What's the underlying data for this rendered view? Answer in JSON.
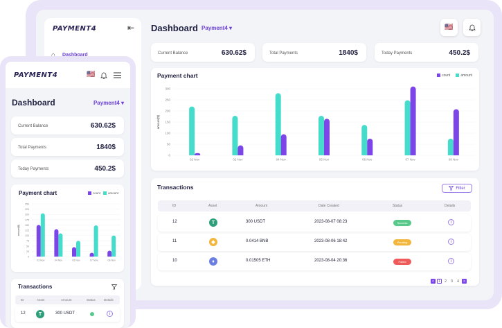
{
  "brand": "PAYMENT4",
  "desktop": {
    "sidebar": {
      "items": [
        {
          "label": "Dashboard",
          "icon": "home-icon"
        }
      ]
    },
    "title": "Dashboard",
    "selector": "Payment4",
    "stats": [
      {
        "label": "Current Balance",
        "value": "630.62$"
      },
      {
        "label": "Total Payments",
        "value": "1840$"
      },
      {
        "label": "Today Payments",
        "value": "450.2$"
      }
    ],
    "chart_title": "Payment chart",
    "transactions": {
      "title": "Transactions",
      "filter_label": "Filter",
      "columns": [
        "ID",
        "Asset",
        "Amount",
        "Date Created",
        "Status",
        "Details"
      ],
      "rows": [
        {
          "id": "12",
          "asset_icon": "tether-icon",
          "amount": "300 USDT",
          "date": "2023-08-07 08:23",
          "status": "Success",
          "status_color": "#58c98a"
        },
        {
          "id": "11",
          "asset_icon": "bnb-icon",
          "amount": "0.0414 BNB",
          "date": "2023-08-06 18:42",
          "status": "Pending",
          "status_color": "#f2b63c"
        },
        {
          "id": "10",
          "asset_icon": "eth-icon",
          "amount": "0.01505 ETH",
          "date": "2023-08-04 20:36",
          "status": "Failed",
          "status_color": "#ef5a5a"
        }
      ],
      "pages": [
        "<",
        "1",
        "2",
        "3",
        "4",
        ">"
      ]
    }
  },
  "mobile": {
    "title": "Dashboard",
    "selector": "Payment4",
    "stats": [
      {
        "label": "Current Balance",
        "value": "630.62$"
      },
      {
        "label": "Total Payments",
        "value": "1840$"
      },
      {
        "label": "Today Payments",
        "value": "450.2$"
      }
    ],
    "chart_title": "Payment chart",
    "transactions": {
      "title": "Transactions",
      "columns": [
        "ID",
        "Asset",
        "Amount",
        "Status",
        "Details"
      ],
      "row": {
        "id": "12",
        "amount": "300 USDT",
        "status_color": "#58c98a"
      }
    }
  },
  "colors": {
    "accent": "#6b3fd8",
    "count": "#7b45e8",
    "amount": "#45dccc"
  },
  "chart_data": [
    {
      "type": "bar",
      "title": "Payment chart",
      "ylabel": "amount($)",
      "legend": "top-right",
      "categories": [
        "02 Nov",
        "02 Nov",
        "04 Nov",
        "05 Nov",
        "06 Nov",
        "07 Nov",
        "08 Nov"
      ],
      "series": [
        {
          "name": "amount",
          "color": "#45dccc",
          "values": [
            220,
            178,
            280,
            178,
            137,
            248,
            75
          ]
        },
        {
          "name": "count",
          "color": "#7b45e8",
          "values": [
            10,
            45,
            95,
            165,
            75,
            310,
            208
          ]
        }
      ],
      "ylim": [
        0,
        300
      ],
      "yticks": [
        0,
        50,
        100,
        150,
        200,
        250,
        300
      ]
    },
    {
      "type": "bar",
      "title": "Payment chart",
      "ylabel": "amount($)",
      "legend": "top-right",
      "categories": [
        "03 Nov",
        "04 Nov",
        "05 Nov",
        "07 Nov",
        "08 Nov"
      ],
      "series": [
        {
          "name": "count",
          "color": "#7b45e8",
          "values": [
            150,
            130,
            45,
            18,
            28
          ]
        },
        {
          "name": "amount",
          "color": "#45dccc",
          "values": [
            205,
            110,
            75,
            148,
            100
          ]
        }
      ],
      "ylim": [
        0,
        250
      ],
      "yticks": [
        0,
        25,
        50,
        75,
        100,
        125,
        150,
        175,
        200,
        225,
        250
      ]
    }
  ]
}
